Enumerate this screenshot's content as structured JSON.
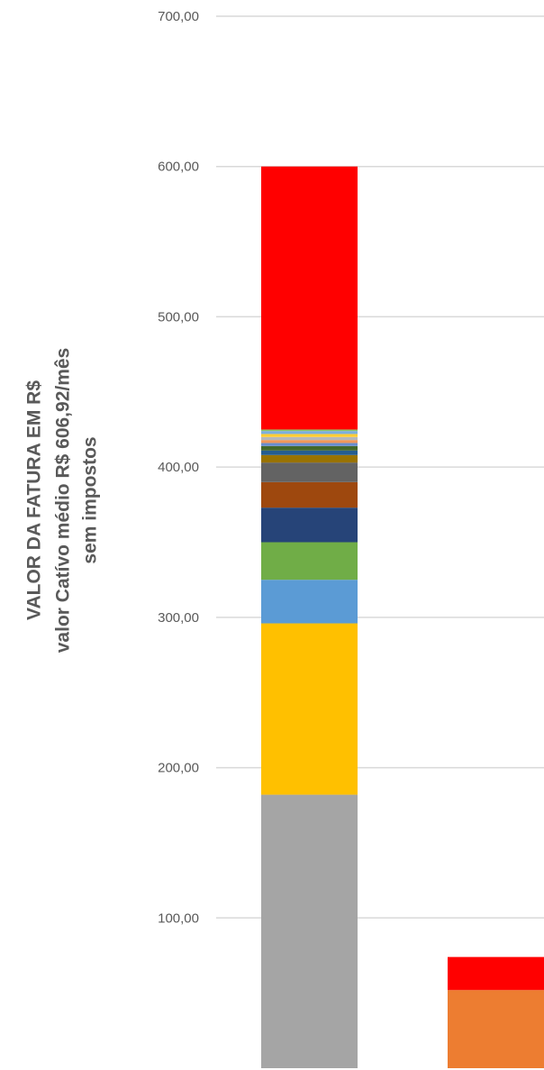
{
  "chart_data": {
    "type": "bar",
    "stacked": true,
    "ylim": [
      0,
      700
    ],
    "y_ticks": [
      {
        "value": 100,
        "label": "100,00"
      },
      {
        "value": 200,
        "label": "200,00"
      },
      {
        "value": 300,
        "label": "300,00"
      },
      {
        "value": 400,
        "label": "400,00"
      },
      {
        "value": 500,
        "label": "500,00"
      },
      {
        "value": 600,
        "label": "600,00"
      },
      {
        "value": 700,
        "label": "700,00"
      }
    ],
    "ylabel_lines": [
      "VALOR DA FATURA EM R$",
      "valor Catívo médio R$ 606,92/mês",
      "sem impostos"
    ],
    "grid": true,
    "legend": "none",
    "bars": [
      {
        "segments": [
          {
            "value": 182,
            "color": "#a5a5a5"
          },
          {
            "value": 114,
            "color": "#ffc000"
          },
          {
            "value": 29,
            "color": "#5b9bd5"
          },
          {
            "value": 25,
            "color": "#70ad47"
          },
          {
            "value": 23,
            "color": "#264478"
          },
          {
            "value": 17,
            "color": "#9e480e"
          },
          {
            "value": 13,
            "color": "#636363"
          },
          {
            "value": 5,
            "color": "#997300"
          },
          {
            "value": 3,
            "color": "#255e91"
          },
          {
            "value": 3,
            "color": "#43682b"
          },
          {
            "value": 2,
            "color": "#698ed0"
          },
          {
            "value": 2,
            "color": "#f1975a"
          },
          {
            "value": 2,
            "color": "#b7b7b7"
          },
          {
            "value": 2,
            "color": "#ffcd33"
          },
          {
            "value": 2,
            "color": "#7cafdd"
          },
          {
            "value": 1,
            "color": "#8cc168"
          },
          {
            "value": 175,
            "color": "#ff0000"
          }
        ]
      },
      {
        "segments": [
          {
            "value": 52,
            "color": "#ed7d31"
          },
          {
            "value": 22,
            "color": "#ff0000"
          }
        ]
      }
    ]
  }
}
